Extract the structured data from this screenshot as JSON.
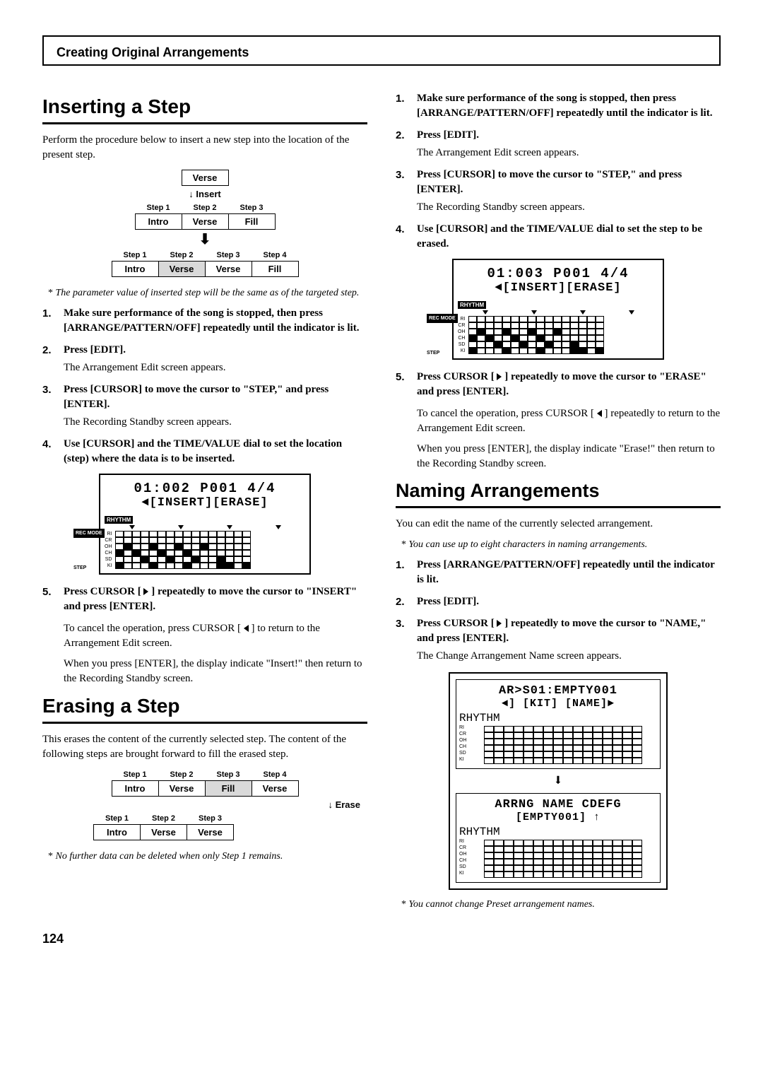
{
  "header": {
    "running_title": "Creating Original Arrangements"
  },
  "page_number": "124",
  "colors": {
    "text": "#000000",
    "bg": "#ffffff",
    "highlight": "#d9d9d9"
  },
  "insert": {
    "title": "Inserting a Step",
    "intro": "Perform the procedure below to insert a new step into the location of the present step.",
    "diagram": {
      "insert_label_top": "Verse",
      "insert_word": "Insert",
      "steps_before": [
        "Step 1",
        "Step 2",
        "Step 3"
      ],
      "row_before": [
        "Intro",
        "Verse",
        "Fill"
      ],
      "steps_after": [
        "Step 1",
        "Step 2",
        "Step 3",
        "Step 4"
      ],
      "row_after": [
        "Intro",
        "Verse",
        "Verse",
        "Fill"
      ],
      "hl_after_idx": 1
    },
    "note1": "The parameter value of inserted step will be the same as of the targeted step.",
    "steps": [
      {
        "b": "Make sure performance of the song is stopped, then press [ARRANGE/PATTERN/OFF] repeatedly until the indicator is lit."
      },
      {
        "b": "Press [EDIT].",
        "sub": "The Arrangement Edit screen appears."
      },
      {
        "b": "Press [CURSOR] to move the cursor to \"STEP,\" and press [ENTER].",
        "sub": "The Recording Standby screen appears."
      },
      {
        "b": "Use [CURSOR] and the TIME/VALUE dial to set the location (step) where the data is to be inserted."
      }
    ],
    "lcd": {
      "line1": "01:002 P001 4/4",
      "line2": "◄[INSERT][ERASE]",
      "rhythm_label": "RHYTHM",
      "rows": [
        "RI",
        "CR",
        "OH",
        "CH",
        "SD",
        "KI"
      ],
      "recmode": "REC MODE",
      "step": "STEP",
      "filled": [
        [
          2,
          1
        ],
        [
          2,
          4
        ],
        [
          2,
          7
        ],
        [
          2,
          10
        ],
        [
          3,
          0
        ],
        [
          3,
          2
        ],
        [
          3,
          5
        ],
        [
          3,
          8
        ],
        [
          4,
          3
        ],
        [
          4,
          6
        ],
        [
          4,
          9
        ],
        [
          4,
          12
        ],
        [
          5,
          0
        ],
        [
          5,
          4
        ],
        [
          5,
          8
        ],
        [
          5,
          12
        ],
        [
          5,
          13
        ],
        [
          5,
          15
        ]
      ]
    },
    "step5_b": "Press CURSOR [ ▷ ] repeatedly to move the cursor to \"INSERT\" and press [ENTER].",
    "cancel": "To cancel the operation, press CURSOR [ ◁ ] to return to the Arrangement Edit screen.",
    "result": "When you press [ENTER], the display indicate \"Insert!\" then return to the Recording Standby screen."
  },
  "erase": {
    "title": "Erasing a Step",
    "intro": "This erases the content of the currently selected step. The content of the following steps are brought forward to fill the erased step.",
    "diagram": {
      "steps_before": [
        "Step 1",
        "Step 2",
        "Step 3",
        "Step 4"
      ],
      "row_before": [
        "Intro",
        "Verse",
        "Fill",
        "Verse"
      ],
      "hl_before_idx": 2,
      "erase_word": "Erase",
      "steps_after": [
        "Step 1",
        "Step 2",
        "Step 3"
      ],
      "row_after": [
        "Intro",
        "Verse",
        "Verse"
      ]
    },
    "note": "No further data can be deleted when only Step 1 remains.",
    "steps": [
      {
        "b": "Make sure performance of the song is stopped, then press [ARRANGE/PATTERN/OFF] repeatedly until the indicator is lit."
      },
      {
        "b": "Press [EDIT].",
        "sub": "The Arrangement Edit screen appears."
      },
      {
        "b": "Press [CURSOR] to move the cursor to \"STEP,\" and press [ENTER].",
        "sub": "The Recording Standby screen appears."
      },
      {
        "b": "Use [CURSOR] and the TIME/VALUE dial to set the step to be erased."
      }
    ],
    "lcd": {
      "line1": "01:003 P001 4/4",
      "line2": "◄[INSERT][ERASE]",
      "rhythm_label": "RHYTHM",
      "rows": [
        "RI",
        "CR",
        "OH",
        "CH",
        "SD",
        "KI"
      ],
      "recmode": "REC MODE",
      "step": "STEP",
      "filled": [
        [
          2,
          1
        ],
        [
          2,
          4
        ],
        [
          2,
          7
        ],
        [
          2,
          10
        ],
        [
          3,
          0
        ],
        [
          3,
          2
        ],
        [
          3,
          5
        ],
        [
          3,
          8
        ],
        [
          4,
          3
        ],
        [
          4,
          6
        ],
        [
          4,
          9
        ],
        [
          4,
          12
        ],
        [
          5,
          0
        ],
        [
          5,
          4
        ],
        [
          5,
          8
        ],
        [
          5,
          12
        ],
        [
          5,
          13
        ],
        [
          5,
          15
        ]
      ]
    },
    "step5_b": "Press CURSOR [ ▷ ] repeatedly to move the cursor to \"ERASE\" and press [ENTER].",
    "cancel": "To cancel the operation, press CURSOR [ ◁ ] repeatedly to return to the Arrangement Edit screen.",
    "result": "When you press [ENTER], the display indicate \"Erase!\" then return to the Recording Standby screen."
  },
  "naming": {
    "title": "Naming Arrangements",
    "intro": "You can edit the name of the currently selected arrangement.",
    "note1": "You can use up to eight characters in naming arrangements.",
    "steps": [
      {
        "b": "Press [ARRANGE/PATTERN/OFF] repeatedly until the indicator is lit."
      },
      {
        "b": "Press [EDIT]."
      },
      {
        "b": "Press CURSOR [ ▷ ] repeatedly to move the cursor to \"NAME,\" and press [ENTER].",
        "sub": "The Change Arrangement Name screen appears."
      }
    ],
    "lcd_top": {
      "l1": "AR>S01:EMPTY001",
      "l2": "◄] [KIT] [NAME]►"
    },
    "lcd_bot": {
      "l1": "ARRNG NAME CDEFG",
      "l2": "[EMPTY001]    ↑"
    },
    "rhythm_label": "RHYTHM",
    "rows": [
      "RI",
      "CR",
      "OH",
      "CH",
      "SD",
      "KI"
    ],
    "note2": "You cannot change Preset arrangement names."
  }
}
